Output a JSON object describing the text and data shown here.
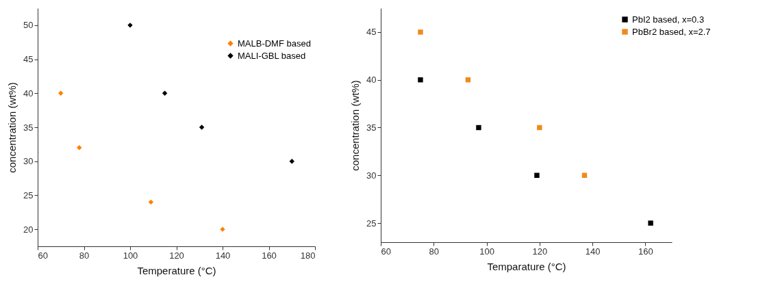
{
  "chart_data": [
    {
      "type": "scatter",
      "xlabel": "Temperature (°C)",
      "ylabel": "concentration (wt%)",
      "xlim": [
        60,
        180
      ],
      "xticks": [
        60,
        80,
        100,
        120,
        140,
        160,
        180
      ],
      "ylim": [
        17.5,
        52.5
      ],
      "yticks": [
        20,
        25,
        30,
        35,
        40,
        45,
        50
      ],
      "marker": "diamond",
      "grid": false,
      "legend": "top right",
      "series": [
        {
          "name": "MALB-DMF based",
          "color": "#ff8000",
          "x": [
            70,
            78,
            109,
            140
          ],
          "values": [
            40,
            32,
            24,
            20
          ]
        },
        {
          "name": "MALI-GBL based",
          "color": "#000000",
          "x": [
            100,
            115,
            131,
            170
          ],
          "values": [
            50,
            40,
            35,
            30
          ]
        }
      ]
    },
    {
      "type": "scatter",
      "xlabel": "Temparature (°C)",
      "ylabel": "concentration (wt%)",
      "xlim": [
        60,
        170
      ],
      "xticks": [
        60,
        80,
        100,
        120,
        140,
        160
      ],
      "ylim": [
        23,
        47.5
      ],
      "yticks": [
        25,
        30,
        35,
        40,
        45
      ],
      "marker": "square",
      "grid": false,
      "legend": "top right",
      "series": [
        {
          "name": "PbI2 based, x=0.3",
          "color": "#000000",
          "x": [
            75,
            97,
            119,
            162
          ],
          "values": [
            40,
            35,
            30,
            25
          ]
        },
        {
          "name": "PbBr2 based, x=2.7",
          "color": "#f08a1c",
          "x": [
            75,
            93,
            120,
            137
          ],
          "values": [
            45,
            40,
            35,
            30
          ]
        }
      ]
    }
  ]
}
